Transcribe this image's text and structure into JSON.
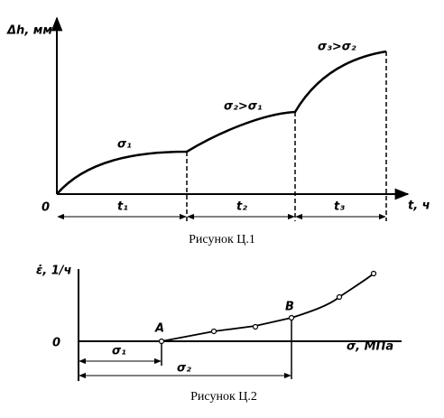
{
  "figure1": {
    "y_label": "Δh, мм",
    "origin": "0",
    "x_label": "t, ч",
    "intervals": [
      "t₁",
      "t₂",
      "t₃"
    ],
    "stress_labels": [
      "σ₁",
      "σ₂>σ₁",
      "σ₃>σ₂"
    ],
    "caption": "Рисунок Ц.1"
  },
  "figure2": {
    "y_label": "ε̇, 1/ч",
    "origin": "0",
    "x_label": "σ, МПа",
    "points": [
      "A",
      "B"
    ],
    "dimensions": [
      "σ₁",
      "σ₂"
    ],
    "caption": "Рисунок Ц.2"
  }
}
